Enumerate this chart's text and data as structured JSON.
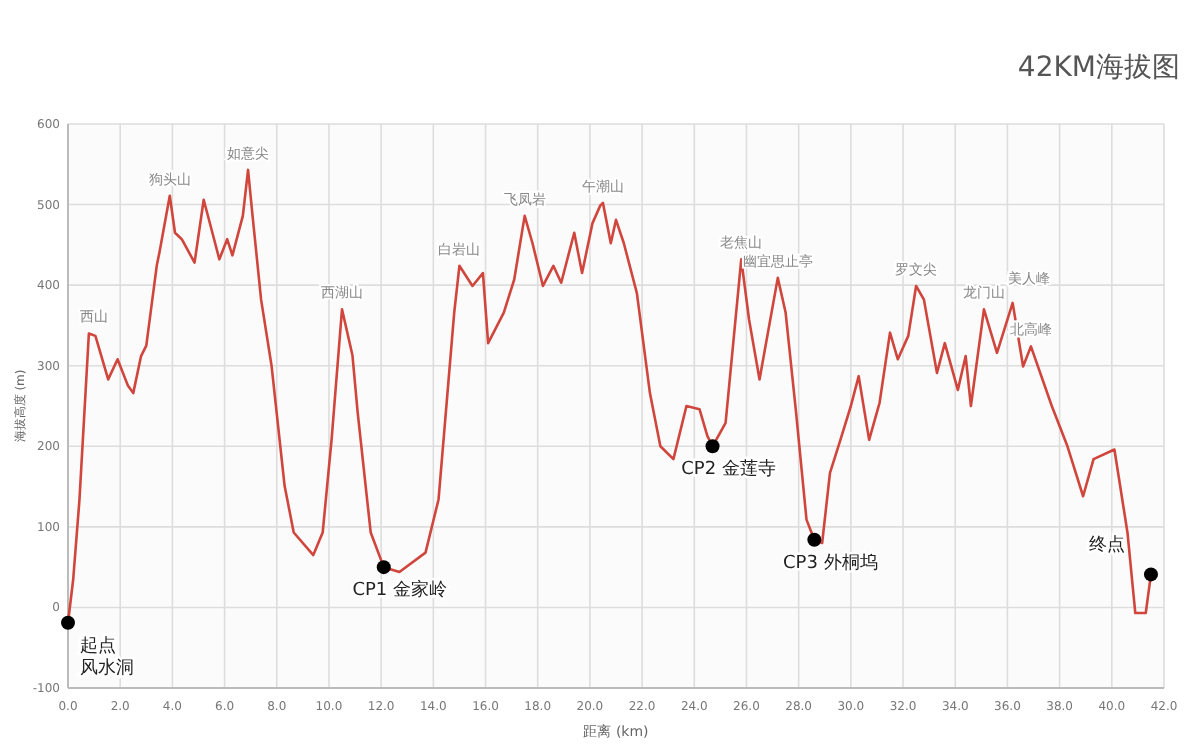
{
  "chart_data": {
    "type": "line",
    "title": "42KM海拔图",
    "xlabel": "距离 (km)",
    "ylabel": "海拔高度 (m)",
    "xlim": [
      0,
      42
    ],
    "ylim": [
      -100,
      600
    ],
    "xticks": [
      {
        "value": 0,
        "label": "0.0"
      },
      {
        "value": 2,
        "label": "2.0"
      },
      {
        "value": 4,
        "label": "4.0"
      },
      {
        "value": 6,
        "label": "6.0"
      },
      {
        "value": 8,
        "label": "8.0"
      },
      {
        "value": 10,
        "label": "10.0"
      },
      {
        "value": 12,
        "label": "12.0"
      },
      {
        "value": 14,
        "label": "14.0"
      },
      {
        "value": 16,
        "label": "16.0"
      },
      {
        "value": 18,
        "label": "18.0"
      },
      {
        "value": 20,
        "label": "20.0"
      },
      {
        "value": 22,
        "label": "22.0"
      },
      {
        "value": 24,
        "label": "24.0"
      },
      {
        "value": 26,
        "label": "26.0"
      },
      {
        "value": 28,
        "label": "28.0"
      },
      {
        "value": 30,
        "label": "30.0"
      },
      {
        "value": 32,
        "label": "32.0"
      },
      {
        "value": 34,
        "label": "34.0"
      },
      {
        "value": 36,
        "label": "36.0"
      },
      {
        "value": 38,
        "label": "38.0"
      },
      {
        "value": 40,
        "label": "40.0"
      },
      {
        "value": 42,
        "label": "42.0"
      }
    ],
    "yticks": [
      -100,
      0,
      100,
      200,
      300,
      400,
      500,
      600
    ],
    "grid": true,
    "series": [
      {
        "color": "#d0453c",
        "x": [
          0,
          0.2,
          0.44,
          0.8,
          1.05,
          1.54,
          1.9,
          2.3,
          2.5,
          2.8,
          3.0,
          3.4,
          3.5,
          3.9,
          4.1,
          4.36,
          4.85,
          5.2,
          5.46,
          5.8,
          6.1,
          6.3,
          6.7,
          6.9,
          7.06,
          7.4,
          7.8,
          8.3,
          8.65,
          9.4,
          9.76,
          10.1,
          10.5,
          10.9,
          11.1,
          11.6,
          12.1,
          12.7,
          13.7,
          14.2,
          14.8,
          15.0,
          15.5,
          15.9,
          16.1,
          16.7,
          17.1,
          17.5,
          17.8,
          18.2,
          18.6,
          18.9,
          19.4,
          19.7,
          20.1,
          20.4,
          20.5,
          20.8,
          21.0,
          21.3,
          21.8,
          22.3,
          22.7,
          23.2,
          23.7,
          24.2,
          24.5,
          24.7,
          25.2,
          25.8,
          26.1,
          26.5,
          27.2,
          27.5,
          27.9,
          28.3,
          28.6,
          28.9,
          29.2,
          29.6,
          30.0,
          30.3,
          30.7,
          31.1,
          31.5,
          31.8,
          32.2,
          32.5,
          32.8,
          33.3,
          33.6,
          34.1,
          34.4,
          34.6,
          35.1,
          35.6,
          36.2,
          36.6,
          36.9,
          37.7,
          38.3,
          38.9,
          39.3,
          40.1,
          40.6,
          40.9,
          41.3,
          41.5
        ],
        "values": [
          -19,
          35,
          134,
          340,
          337,
          283,
          308,
          275,
          266,
          312,
          325,
          424,
          440,
          511,
          465,
          457,
          428,
          506,
          474,
          432,
          457,
          437,
          486,
          543,
          490,
          382,
          300,
          151,
          93,
          65,
          93,
          208,
          370,
          313,
          242,
          93,
          50,
          44,
          68,
          134,
          366,
          424,
          399,
          415,
          328,
          366,
          407,
          486,
          452,
          399,
          424,
          403,
          465,
          415,
          477,
          499,
          502,
          452,
          481,
          452,
          390,
          266,
          200,
          184,
          250,
          246,
          213,
          200,
          229,
          432,
          357,
          283,
          409,
          366,
          242,
          109,
          84,
          80,
          167,
          208,
          250,
          287,
          208,
          254,
          341,
          308,
          337,
          399,
          382,
          291,
          328,
          270,
          312,
          250,
          370,
          316,
          378,
          299,
          324,
          250,
          200,
          138,
          184,
          196,
          93,
          -7,
          -7,
          41
        ]
      },
      {
        "type": "scatter",
        "color": "#000000",
        "marker": "circle",
        "x": [
          0,
          12.1,
          24.7,
          28.6,
          41.5
        ],
        "values": [
          -19,
          50,
          200,
          84,
          41
        ]
      }
    ],
    "annotations": [
      {
        "text": "西山",
        "x": 1.0,
        "y": 340
      },
      {
        "text": "狗头山",
        "x": 3.9,
        "y": 511
      },
      {
        "text": "如意尖",
        "x": 6.9,
        "y": 543
      },
      {
        "text": "西湖山",
        "x": 10.5,
        "y": 370
      },
      {
        "text": "白岩山",
        "x": 15.0,
        "y": 424
      },
      {
        "text": "飞凤岩",
        "x": 17.5,
        "y": 486
      },
      {
        "text": "午潮山",
        "x": 20.5,
        "y": 502
      },
      {
        "text": "老焦山",
        "x": 25.8,
        "y": 432
      },
      {
        "text": "幽宜思止亭",
        "x": 27.2,
        "y": 409
      },
      {
        "text": "罗文尖",
        "x": 32.5,
        "y": 399
      },
      {
        "text": "龙门山",
        "x": 35.1,
        "y": 370
      },
      {
        "text": "美人峰",
        "x": 36.2,
        "y": 378
      },
      {
        "text": "北高峰",
        "x": 36.9,
        "y": 324
      },
      {
        "text": "起点",
        "x": 0,
        "y": -19
      },
      {
        "text": "风水洞",
        "x": 0,
        "y": -19
      },
      {
        "text": "CP1 金家岭",
        "x": 12.1,
        "y": 50
      },
      {
        "text": "CP2 金莲寺",
        "x": 24.7,
        "y": 200
      },
      {
        "text": "CP3 外桐坞",
        "x": 28.6,
        "y": 84
      },
      {
        "text": "终点",
        "x": 41.5,
        "y": 41
      }
    ]
  }
}
